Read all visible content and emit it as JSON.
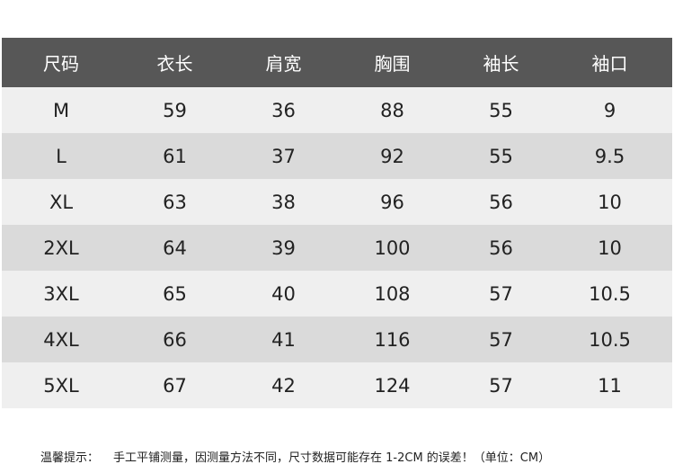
{
  "table": {
    "header": [
      "尺码",
      "衣长",
      "肩宽",
      "胸围",
      "袖长",
      "袖口"
    ],
    "rows": [
      [
        "M",
        59,
        36,
        88,
        55,
        9
      ],
      [
        "L",
        61,
        37,
        92,
        55,
        9.5
      ],
      [
        "XL",
        63,
        38,
        96,
        56,
        10
      ],
      [
        "2XL",
        64,
        39,
        100,
        56,
        10
      ],
      [
        "3XL",
        65,
        40,
        108,
        57,
        10.5
      ],
      [
        "4XL",
        66,
        41,
        116,
        57,
        10.5
      ],
      [
        "5XL",
        67,
        42,
        124,
        57,
        11
      ]
    ]
  },
  "note": {
    "label": "温馨提示：",
    "text": "手工平铺测量，因测量方法不同，尺寸数据可能存在 1-2CM 的误差！（单位：CM）"
  }
}
